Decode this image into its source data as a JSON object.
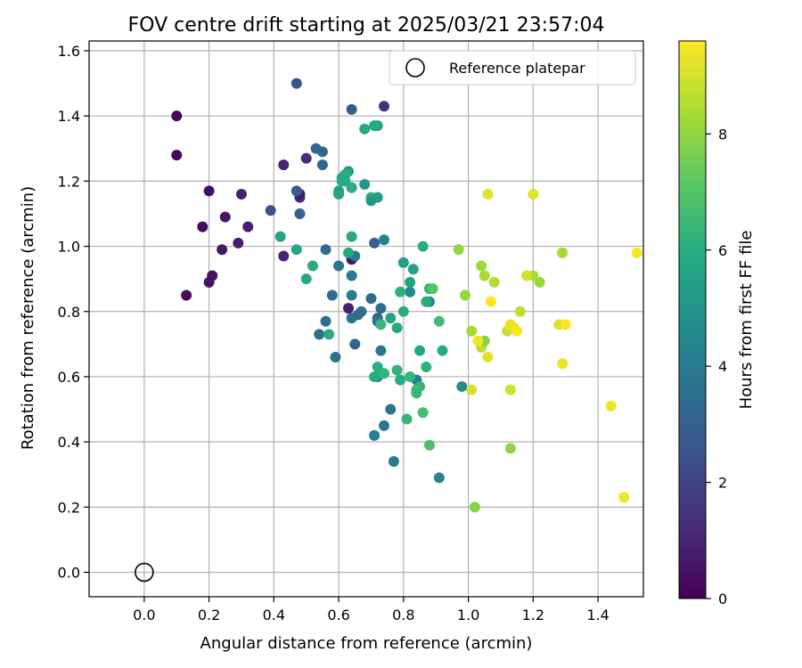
{
  "chart_data": {
    "type": "scatter",
    "title": "FOV centre drift starting at 2025/03/21 23:57:04",
    "xlabel": "Angular distance from reference (arcmin)",
    "ylabel": "Rotation from reference (arcmin)",
    "xlim": [
      -0.17,
      1.54
    ],
    "ylim": [
      -0.075,
      1.63
    ],
    "xticks": [
      0.0,
      0.2,
      0.4,
      0.6,
      0.8,
      1.0,
      1.2,
      1.4
    ],
    "xtick_labels": [
      "0.0",
      "0.2",
      "0.4",
      "0.6",
      "0.8",
      "1.0",
      "1.2",
      "1.4"
    ],
    "yticks": [
      0.0,
      0.2,
      0.4,
      0.6,
      0.8,
      1.0,
      1.2,
      1.4,
      1.6
    ],
    "ytick_labels": [
      "0.0",
      "0.2",
      "0.4",
      "0.6",
      "0.8",
      "1.0",
      "1.2",
      "1.4",
      "1.6"
    ],
    "grid": true,
    "legend": {
      "placement": "upper-right",
      "entries": [
        {
          "label": "Reference platepar",
          "marker": "open-circle"
        }
      ]
    },
    "reference_point": {
      "x": 0.0,
      "y": 0.0
    },
    "colorbar": {
      "label": "Hours from first FF file",
      "colormap": "viridis",
      "range": [
        0,
        9.6
      ],
      "ticks": [
        0,
        2,
        4,
        6,
        8
      ],
      "tick_labels": [
        "0",
        "2",
        "4",
        "6",
        "8"
      ]
    },
    "series": [
      {
        "color_values": [
          0.1,
          0.2,
          0.3,
          0.3,
          0.4,
          0.5,
          0.6,
          0.5,
          0.7,
          0.8,
          0.8,
          0.9,
          1.0,
          1.0,
          1.1,
          1.2,
          1.3,
          1.4,
          0.7,
          0.6,
          0.9,
          2.4,
          2.6,
          2.8,
          3.0,
          3.2,
          3.2,
          3.4,
          3.6,
          2.9,
          3.0,
          3.2,
          3.4,
          3.6,
          3.8,
          3.2,
          3.4,
          3.5,
          3.6,
          3.8,
          3.9,
          4.0,
          4.1,
          3.2,
          3.3,
          3.5,
          3.7,
          3.8,
          3.9,
          4.0,
          3.8,
          4.0,
          4.1,
          4.2,
          4.4,
          4.0,
          4.2,
          4.4,
          4.6,
          5.2,
          5.4,
          5.6,
          5.8,
          5.9,
          6.0,
          5.7,
          5.8,
          6.0,
          6.1,
          6.2,
          5.6,
          5.8,
          5.9,
          5.0,
          5.2,
          5.4,
          5.6,
          5.8,
          6.0,
          5.6,
          5.7,
          5.8,
          5.9,
          6.0,
          5.4,
          5.5,
          5.6,
          5.8,
          5.9,
          6.0,
          6.1,
          6.2,
          6.3,
          6.4,
          5.9,
          6.0,
          6.1,
          6.2,
          6.3,
          6.6,
          6.7,
          6.8,
          7.0,
          6.6,
          6.2,
          5.9,
          6.0,
          6.3,
          6.1,
          6.4,
          6.4,
          7.8,
          8.0,
          8.1,
          8.2,
          8.4,
          8.5,
          8.8,
          8.9,
          8.9,
          8.7,
          8.3,
          8.6,
          7.8,
          8.0,
          8.2,
          8.4,
          8.3,
          9.2,
          9.2,
          9.0,
          9.1,
          9.3,
          9.4,
          9.4,
          9.5,
          9.2,
          9.3,
          9.6,
          9.5,
          9.0,
          9.4,
          9.6
        ],
        "x": [
          0.1,
          0.1,
          0.13,
          0.18,
          0.2,
          0.21,
          0.25,
          0.2,
          0.24,
          0.29,
          0.32,
          0.3,
          0.43,
          0.43,
          0.48,
          0.5,
          0.64,
          0.74,
          0.48,
          0.64,
          0.63,
          0.39,
          0.47,
          0.47,
          0.48,
          0.53,
          0.55,
          0.56,
          0.54,
          0.64,
          0.71,
          0.72,
          0.73,
          0.64,
          0.67,
          0.55,
          0.56,
          0.58,
          0.59,
          0.6,
          0.64,
          0.65,
          0.64,
          0.65,
          0.66,
          0.7,
          0.72,
          0.74,
          0.73,
          0.72,
          0.76,
          0.77,
          0.71,
          0.74,
          0.82,
          0.84,
          0.88,
          0.91,
          0.98,
          0.61,
          0.63,
          0.6,
          0.63,
          0.64,
          0.62,
          0.6,
          0.62,
          0.61,
          0.64,
          0.7,
          0.72,
          0.68,
          0.71,
          0.68,
          0.7,
          0.72,
          0.76,
          0.78,
          0.8,
          0.42,
          0.47,
          0.5,
          0.52,
          0.57,
          0.8,
          0.82,
          0.83,
          0.85,
          0.86,
          0.87,
          0.88,
          0.85,
          0.84,
          0.81,
          0.79,
          0.73,
          0.72,
          0.78,
          0.82,
          0.84,
          0.86,
          0.88,
          0.89,
          0.91,
          0.87,
          0.92,
          0.71,
          0.74,
          0.79,
          0.73,
          0.84,
          1.02,
          0.97,
          0.99,
          1.04,
          1.05,
          1.08,
          1.12,
          1.14,
          1.13,
          1.16,
          1.01,
          1.04,
          1.05,
          1.13,
          1.22,
          1.2,
          1.29,
          1.06,
          1.2,
          1.18,
          1.28,
          1.29,
          1.44,
          1.48,
          1.52,
          1.06,
          1.13,
          1.07,
          1.15,
          1.01,
          1.03,
          1.3
        ],
        "y": [
          1.4,
          1.28,
          0.85,
          1.06,
          1.17,
          0.91,
          1.09,
          0.89,
          0.99,
          1.01,
          1.06,
          1.16,
          1.25,
          0.97,
          1.15,
          1.27,
          1.18,
          1.43,
          1.16,
          0.96,
          0.81,
          1.11,
          1.5,
          1.17,
          1.1,
          1.3,
          1.25,
          0.99,
          0.73,
          1.42,
          1.01,
          0.78,
          0.81,
          0.78,
          0.8,
          1.29,
          0.77,
          0.85,
          0.66,
          0.94,
          0.91,
          0.97,
          0.85,
          0.7,
          0.79,
          0.84,
          0.77,
          0.45,
          0.68,
          0.6,
          0.5,
          0.34,
          0.42,
          1.02,
          0.86,
          0.59,
          0.83,
          0.29,
          0.57,
          1.21,
          1.23,
          1.17,
          0.98,
          1.03,
          1.22,
          1.16,
          1.2,
          1.2,
          1.18,
          1.15,
          1.37,
          1.36,
          1.37,
          1.19,
          1.14,
          1.15,
          0.78,
          0.75,
          0.8,
          1.03,
          0.99,
          0.9,
          0.94,
          0.73,
          0.95,
          0.89,
          0.93,
          0.68,
          1.0,
          0.83,
          0.87,
          0.57,
          0.55,
          0.47,
          0.59,
          0.61,
          0.63,
          0.62,
          0.6,
          0.56,
          0.49,
          0.39,
          0.87,
          0.77,
          0.63,
          0.68,
          0.6,
          0.61,
          0.86,
          0.76,
          0.55,
          0.2,
          0.99,
          0.85,
          0.94,
          0.91,
          0.89,
          0.74,
          0.75,
          0.56,
          0.8,
          0.74,
          0.69,
          0.71,
          0.38,
          0.89,
          0.91,
          0.98,
          1.16,
          1.16,
          0.91,
          0.76,
          0.64,
          0.51,
          0.23,
          0.98,
          0.66,
          0.76,
          0.83,
          0.74,
          0.56,
          0.71,
          0.76
        ]
      }
    ]
  }
}
